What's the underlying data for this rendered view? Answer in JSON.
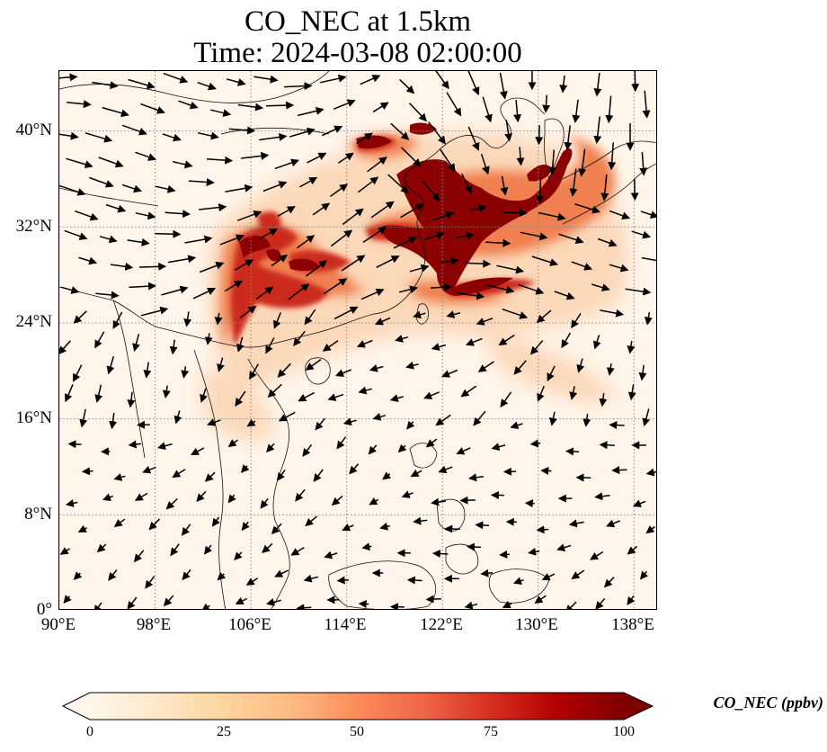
{
  "title": {
    "line1": "CO_NEC at 1.5km",
    "line2": "Time: 2024-03-08 02:00:00"
  },
  "axes": {
    "y_ticks": [
      "40°N",
      "32°N",
      "24°N",
      "16°N",
      "8°N",
      "0°"
    ],
    "x_ticks": [
      "90°E",
      "98°E",
      "106°E",
      "114°E",
      "122°E",
      "130°E",
      "138°E"
    ],
    "lon_range": [
      90,
      140
    ],
    "lat_range": [
      0,
      45
    ],
    "gridlines": true
  },
  "colorbar": {
    "label": "CO_NEC (ppbv)",
    "ticks": [
      "0",
      "25",
      "50",
      "75",
      "100"
    ],
    "range": [
      0,
      100
    ],
    "extend": "both",
    "colormap": [
      "#fff7ec",
      "#fee8c8",
      "#fdd49e",
      "#fdbb84",
      "#fc8d59",
      "#ef6548",
      "#d7301f",
      "#b30000",
      "#7f0000"
    ]
  },
  "map": {
    "background_color": "#fff5ea",
    "plume_colors": {
      "high": "#8b0000",
      "mid": "#cc2a1e",
      "low": "#f08050",
      "faint": "#fbd3b0"
    },
    "wind_arrow_color": "#000000",
    "coastline_color": "#111111",
    "grid_color": "#888888"
  }
}
